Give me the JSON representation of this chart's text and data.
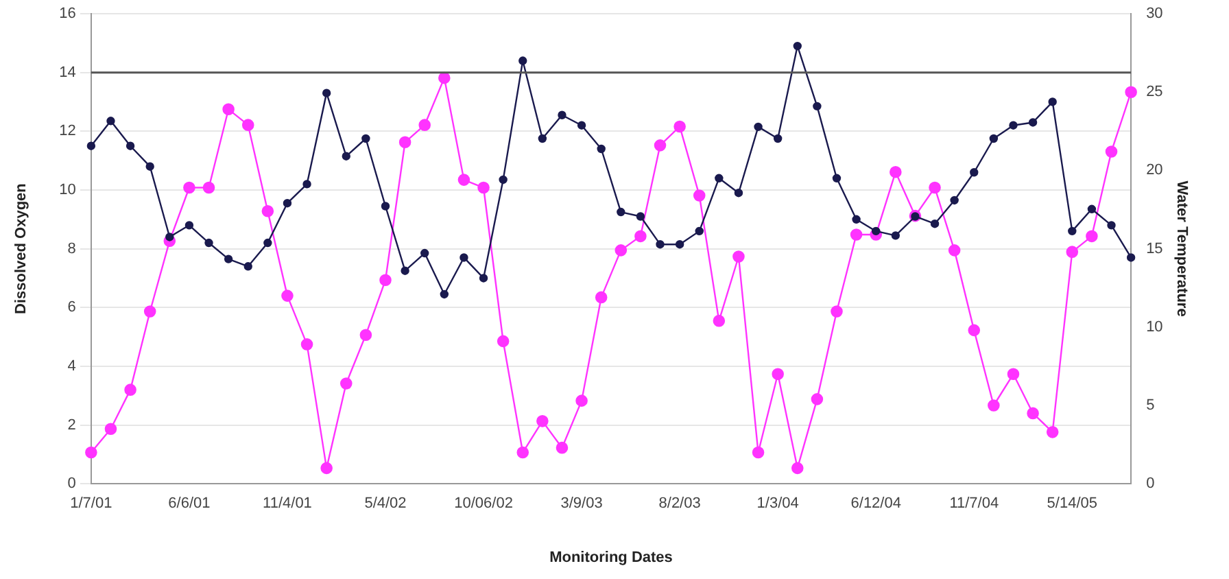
{
  "chart_data": {
    "type": "line",
    "xlabel": "Monitoring Dates",
    "ylabel": "Dissolved Oxygen",
    "y2label": "Water Temperature",
    "categories": [
      "1/7/01",
      null,
      null,
      null,
      null,
      "6/6/01",
      null,
      null,
      null,
      null,
      "11/4/01",
      null,
      null,
      null,
      null,
      "5/4/02",
      null,
      null,
      null,
      null,
      "10/06/02",
      null,
      null,
      null,
      null,
      "3/9/03",
      null,
      null,
      null,
      null,
      "8/2/03",
      null,
      null,
      null,
      null,
      "1/3/04",
      null,
      null,
      null,
      null,
      "6/12/04",
      null,
      null,
      null,
      null,
      "11/7/04",
      null,
      null,
      null,
      null,
      "5/14/05",
      null,
      null,
      null
    ],
    "series": [
      {
        "color": "#1a1a4e",
        "values": [
          11.5,
          12.35,
          11.5,
          10.8,
          8.4,
          8.8,
          8.2,
          7.65,
          7.4,
          8.2,
          9.55,
          10.2,
          13.3,
          11.15,
          11.75,
          9.45,
          7.25,
          7.85,
          6.45,
          7.7,
          7.0,
          10.35,
          14.4,
          11.75,
          12.55,
          12.2,
          11.4,
          9.25,
          9.1,
          8.15,
          8.15,
          8.6,
          10.4,
          9.9,
          12.15,
          11.75,
          14.9,
          12.85,
          10.4,
          9.0,
          8.6,
          8.45,
          9.1,
          8.85,
          9.65,
          10.6,
          11.75,
          12.2,
          12.3,
          13.0,
          8.6,
          9.35,
          8.8,
          7.7
        ]
      },
      {
        "color": "#ff33ff",
        "axis": "y2",
        "values": [
          2.0,
          3.5,
          6.0,
          11.0,
          15.5,
          18.9,
          18.9,
          23.9,
          22.9,
          17.4,
          12.0,
          8.9,
          1.0,
          6.4,
          9.5,
          13.0,
          21.8,
          22.9,
          25.9,
          19.4,
          18.9,
          9.1,
          2.0,
          4.0,
          2.3,
          5.3,
          11.9,
          14.9,
          15.8,
          21.6,
          22.8,
          18.4,
          10.4,
          14.5,
          2.0,
          7.0,
          1.0,
          5.4,
          11.0,
          15.9,
          15.9,
          19.9,
          17.1,
          18.9,
          14.9,
          9.8,
          5.0,
          7.0,
          4.5,
          3.3,
          14.8,
          15.8,
          21.2,
          25.0
        ]
      }
    ],
    "ylim": [
      0,
      16
    ],
    "yticks": [
      0,
      2,
      4,
      6,
      8,
      10,
      12,
      14,
      16
    ],
    "y2lim": [
      0,
      30
    ],
    "y2ticks": [
      0,
      5,
      10,
      15,
      20,
      25,
      30
    ],
    "ref_lines": [
      {
        "axis": "y",
        "value": 14,
        "color": "#555555"
      }
    ],
    "grid": "y",
    "legend": false,
    "marker": "circle",
    "line_style": "solid"
  }
}
